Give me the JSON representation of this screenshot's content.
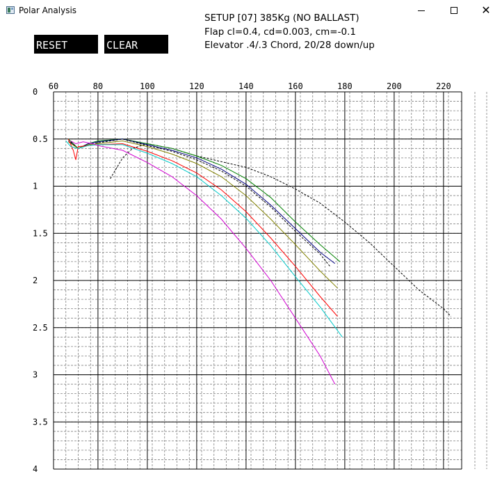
{
  "window": {
    "title": "Polar Analysis",
    "icon": "app-icon",
    "controls": [
      "minimize-icon",
      "maximize-icon",
      "close-icon"
    ]
  },
  "buttons": {
    "reset_label": "RESET",
    "clear_label": "CLEAR"
  },
  "setup": {
    "line1": "SETUP [07] 385Kg (NO BALLAST)",
    "line2": "Flap cl=0.4, cd=0.003, cm=-0.1",
    "line3": "Elevator .4/.3 Chord, 20/28 down/up"
  },
  "chart_data": {
    "type": "line",
    "title": "",
    "xlabel": "",
    "ylabel": "",
    "xlim": [
      60,
      225
    ],
    "ylim": [
      0,
      4
    ],
    "y_inverted": true,
    "x_ticks": [
      "60",
      "80",
      "100",
      "120",
      "140",
      "160",
      "180",
      "200",
      "220"
    ],
    "y_ticks": [
      "0",
      "0.5",
      "1",
      "1.5",
      "2",
      "2.5",
      "3",
      "3.5",
      "4"
    ],
    "grid": true,
    "series": [
      {
        "color": "#000000",
        "dashed": true,
        "x": [
          85,
          90,
          94,
          100,
          110,
          120,
          130,
          140,
          150,
          160,
          170,
          180,
          190,
          200,
          210,
          220,
          223
        ],
        "y": [
          0.92,
          0.7,
          0.6,
          0.55,
          0.6,
          0.68,
          0.74,
          0.8,
          0.9,
          1.03,
          1.18,
          1.38,
          1.6,
          1.85,
          2.1,
          2.3,
          2.38
        ]
      },
      {
        "color": "#008000",
        "dashed": false,
        "x": [
          68,
          70,
          72,
          76,
          80,
          90,
          100,
          110,
          120,
          130,
          140,
          150,
          160,
          170,
          178
        ],
        "y": [
          0.5,
          0.55,
          0.6,
          0.55,
          0.52,
          0.5,
          0.55,
          0.6,
          0.68,
          0.78,
          0.92,
          1.12,
          1.38,
          1.62,
          1.8
        ]
      },
      {
        "color": "#000080",
        "dashed": false,
        "x": [
          68,
          72,
          76,
          80,
          90,
          100,
          110,
          120,
          130,
          140,
          150,
          160,
          170,
          176
        ],
        "y": [
          0.52,
          0.6,
          0.55,
          0.53,
          0.5,
          0.56,
          0.62,
          0.7,
          0.82,
          0.98,
          1.2,
          1.45,
          1.7,
          1.82
        ]
      },
      {
        "color": "#000000",
        "dashed": true,
        "x": [
          69,
          72,
          76,
          80,
          90,
          100,
          110,
          120,
          130,
          140,
          150,
          160,
          170,
          174
        ],
        "y": [
          0.53,
          0.6,
          0.56,
          0.54,
          0.5,
          0.57,
          0.63,
          0.72,
          0.84,
          1.0,
          1.22,
          1.48,
          1.72,
          1.85
        ]
      },
      {
        "color": "#808000",
        "dashed": false,
        "x": [
          68,
          72,
          76,
          80,
          90,
          100,
          110,
          120,
          130,
          140,
          150,
          160,
          170,
          177
        ],
        "y": [
          0.53,
          0.6,
          0.56,
          0.55,
          0.52,
          0.58,
          0.66,
          0.76,
          0.9,
          1.1,
          1.35,
          1.62,
          1.9,
          2.08
        ]
      },
      {
        "color": "#ff0000",
        "dashed": false,
        "x": [
          68,
          70,
          71,
          72,
          76,
          80,
          90,
          100,
          110,
          120,
          130,
          140,
          150,
          160,
          170,
          177
        ],
        "y": [
          0.5,
          0.62,
          0.72,
          0.58,
          0.57,
          0.56,
          0.55,
          0.63,
          0.73,
          0.86,
          1.04,
          1.27,
          1.55,
          1.85,
          2.17,
          2.38
        ]
      },
      {
        "color": "#00c8c8",
        "dashed": false,
        "x": [
          67,
          69,
          72,
          76,
          80,
          90,
          100,
          110,
          120,
          130,
          140,
          150,
          160,
          170,
          179
        ],
        "y": [
          0.52,
          0.58,
          0.6,
          0.57,
          0.56,
          0.56,
          0.65,
          0.76,
          0.9,
          1.1,
          1.34,
          1.63,
          1.96,
          2.28,
          2.6
        ]
      },
      {
        "color": "#d000d0",
        "dashed": false,
        "x": [
          69,
          71,
          74,
          78,
          80,
          90,
          100,
          110,
          120,
          130,
          140,
          150,
          160,
          170,
          176
        ],
        "y": [
          0.52,
          0.55,
          0.53,
          0.55,
          0.57,
          0.62,
          0.75,
          0.9,
          1.1,
          1.35,
          1.66,
          2.0,
          2.4,
          2.8,
          3.1
        ]
      }
    ]
  }
}
